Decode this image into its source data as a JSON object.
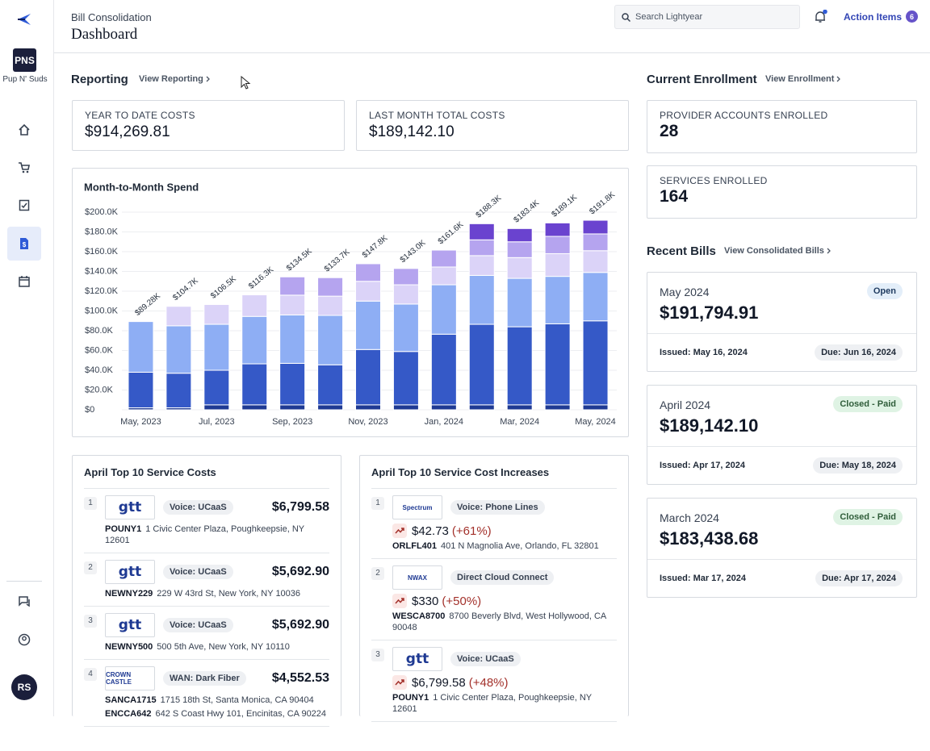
{
  "sidebar": {
    "org_initials": "PNS",
    "org_name": "Pup N' Suds",
    "user_initials": "RS"
  },
  "header": {
    "breadcrumb": "Bill Consolidation",
    "title": "Dashboard",
    "search_placeholder": "Search Lightyear",
    "action_items": {
      "label": "Action Items",
      "count": 6
    }
  },
  "reporting": {
    "title": "Reporting",
    "link": "View Reporting",
    "cards": [
      {
        "label": "YEAR TO DATE COSTS",
        "value": "$914,269.81"
      },
      {
        "label": "LAST MONTH TOTAL COSTS",
        "value": "$189,142.10"
      }
    ]
  },
  "chart_data": {
    "type": "bar",
    "title": "Month-to-Month Spend",
    "categories": [
      "May, 2023",
      null,
      "Jul, 2023",
      null,
      "Sep, 2023",
      null,
      "Nov, 2023",
      null,
      "Jan, 2024",
      null,
      "Mar, 2024",
      null,
      "May, 2024"
    ],
    "series": [
      {
        "color": "#1f3a93",
        "values": [
          2000,
          2000,
          5000,
          5000,
          5000,
          5000,
          5000,
          5000,
          5000,
          5000,
          5000,
          5000,
          5000
        ]
      },
      {
        "color": "#3559c7",
        "values": [
          36000,
          35000,
          35000,
          41500,
          42000,
          40500,
          56000,
          54000,
          71500,
          81500,
          79000,
          82000,
          85000
        ]
      },
      {
        "color": "#8eaef4",
        "values": [
          51280,
          48000,
          46500,
          48000,
          49000,
          50000,
          49000,
          48000,
          50000,
          49500,
          49000,
          48000,
          49000
        ]
      },
      {
        "color": "#dbd3f8",
        "values": [
          0,
          19700,
          20000,
          21800,
          20000,
          19500,
          20000,
          19500,
          18000,
          20000,
          21000,
          23000,
          22000
        ]
      },
      {
        "color": "#b5a4ef",
        "values": [
          0,
          0,
          0,
          0,
          18500,
          18700,
          17800,
          16500,
          17100,
          16000,
          16000,
          17500,
          17000
        ]
      },
      {
        "color": "#6a43cf",
        "values": [
          0,
          0,
          0,
          0,
          0,
          0,
          0,
          0,
          0,
          16300,
          13400,
          13600,
          13800
        ]
      }
    ],
    "totals": [
      89280,
      104700,
      106500,
      116300,
      134500,
      133700,
      147800,
      143000,
      161600,
      188300,
      183400,
      189100,
      191800
    ],
    "total_labels": [
      "$89.28K",
      "$104.7K",
      "$106.5K",
      "$116.3K",
      "$134.5K",
      "$133.7K",
      "$147.8K",
      "$143.0K",
      "$161.6K",
      "$188.3K",
      "$183.4K",
      "$189.1K",
      "$191.8K"
    ],
    "ylim": [
      0,
      200000
    ],
    "yticks": [
      {
        "value": 0,
        "label": "$0"
      },
      {
        "value": 20000,
        "label": "$20.0K"
      },
      {
        "value": 40000,
        "label": "$40.0K"
      },
      {
        "value": 60000,
        "label": "$60.0K"
      },
      {
        "value": 80000,
        "label": "$80.0K"
      },
      {
        "value": 100000,
        "label": "$100.0K"
      },
      {
        "value": 120000,
        "label": "$120.0K"
      },
      {
        "value": 140000,
        "label": "$140.0K"
      },
      {
        "value": 160000,
        "label": "$160.0K"
      },
      {
        "value": 180000,
        "label": "$180.0K"
      },
      {
        "value": 200000,
        "label": "$200.0K"
      }
    ],
    "grid": true
  },
  "top_costs": {
    "title": "April Top 10 Service Costs",
    "items": [
      {
        "rank": 1,
        "logo": "gtt",
        "service": "Voice: UCaaS",
        "amount": "$6,799.58",
        "accounts": [
          {
            "id": "POUNY1",
            "address": "1 Civic Center Plaza, Poughkeepsie, NY 12601"
          }
        ]
      },
      {
        "rank": 2,
        "logo": "gtt",
        "service": "Voice: UCaaS",
        "amount": "$5,692.90",
        "accounts": [
          {
            "id": "NEWNY229",
            "address": "229 W 43rd St, New York, NY 10036"
          }
        ]
      },
      {
        "rank": 3,
        "logo": "gtt",
        "service": "Voice: UCaaS",
        "amount": "$5,692.90",
        "accounts": [
          {
            "id": "NEWNY500",
            "address": "500 5th Ave, New York, NY 10110"
          }
        ]
      },
      {
        "rank": 4,
        "logo": "CROWN CASTLE",
        "service": "WAN: Dark Fiber",
        "amount": "$4,552.53",
        "accounts": [
          {
            "id": "SANCA1715",
            "address": "1715 18th St, Santa Monica, CA 90404"
          },
          {
            "id": "ENCCA642",
            "address": "642 S Coast Hwy 101, Encinitas, CA 90224"
          }
        ]
      }
    ]
  },
  "top_increases": {
    "title": "April Top 10 Service Cost Increases",
    "items": [
      {
        "rank": 1,
        "logo": "Spectrum",
        "service": "Voice: Phone Lines",
        "amount": "$42.73",
        "change": "(+61%)",
        "accounts": [
          {
            "id": "ORLFL401",
            "address": "401 N Magnolia Ave, Orlando, FL 32801"
          }
        ]
      },
      {
        "rank": 2,
        "logo": "NWAX",
        "service": "Direct Cloud Connect",
        "amount": "$330",
        "change": "(+50%)",
        "accounts": [
          {
            "id": "WESCA8700",
            "address": "8700 Beverly Blvd, West Hollywood, CA 90048"
          }
        ]
      },
      {
        "rank": 3,
        "logo": "gtt",
        "service": "Voice: UCaaS",
        "amount": "$6,799.58",
        "change": "(+48%)",
        "accounts": [
          {
            "id": "POUNY1",
            "address": "1 Civic Center Plaza, Poughkeepsie, NY 12601"
          }
        ]
      }
    ]
  },
  "enrollment": {
    "title": "Current Enrollment",
    "link": "View Enrollment",
    "cards": [
      {
        "label": "PROVIDER ACCOUNTS ENROLLED",
        "value": 28
      },
      {
        "label": "SERVICES ENROLLED",
        "value": 164
      }
    ]
  },
  "recent_bills": {
    "title": "Recent Bills",
    "link": "View Consolidated Bills",
    "bills": [
      {
        "month": "May 2024",
        "status": "Open",
        "amount": "$191,794.91",
        "issued": "Issued: May 16, 2024",
        "due": "Due: Jun 16, 2024"
      },
      {
        "month": "April 2024",
        "status": "Closed - Paid",
        "amount": "$189,142.10",
        "issued": "Issued: Apr 17, 2024",
        "due": "Due: May 18, 2024"
      },
      {
        "month": "March 2024",
        "status": "Closed - Paid",
        "amount": "$183,438.68",
        "issued": "Issued: Mar 17, 2024",
        "due": "Due: Apr 17, 2024"
      }
    ]
  }
}
